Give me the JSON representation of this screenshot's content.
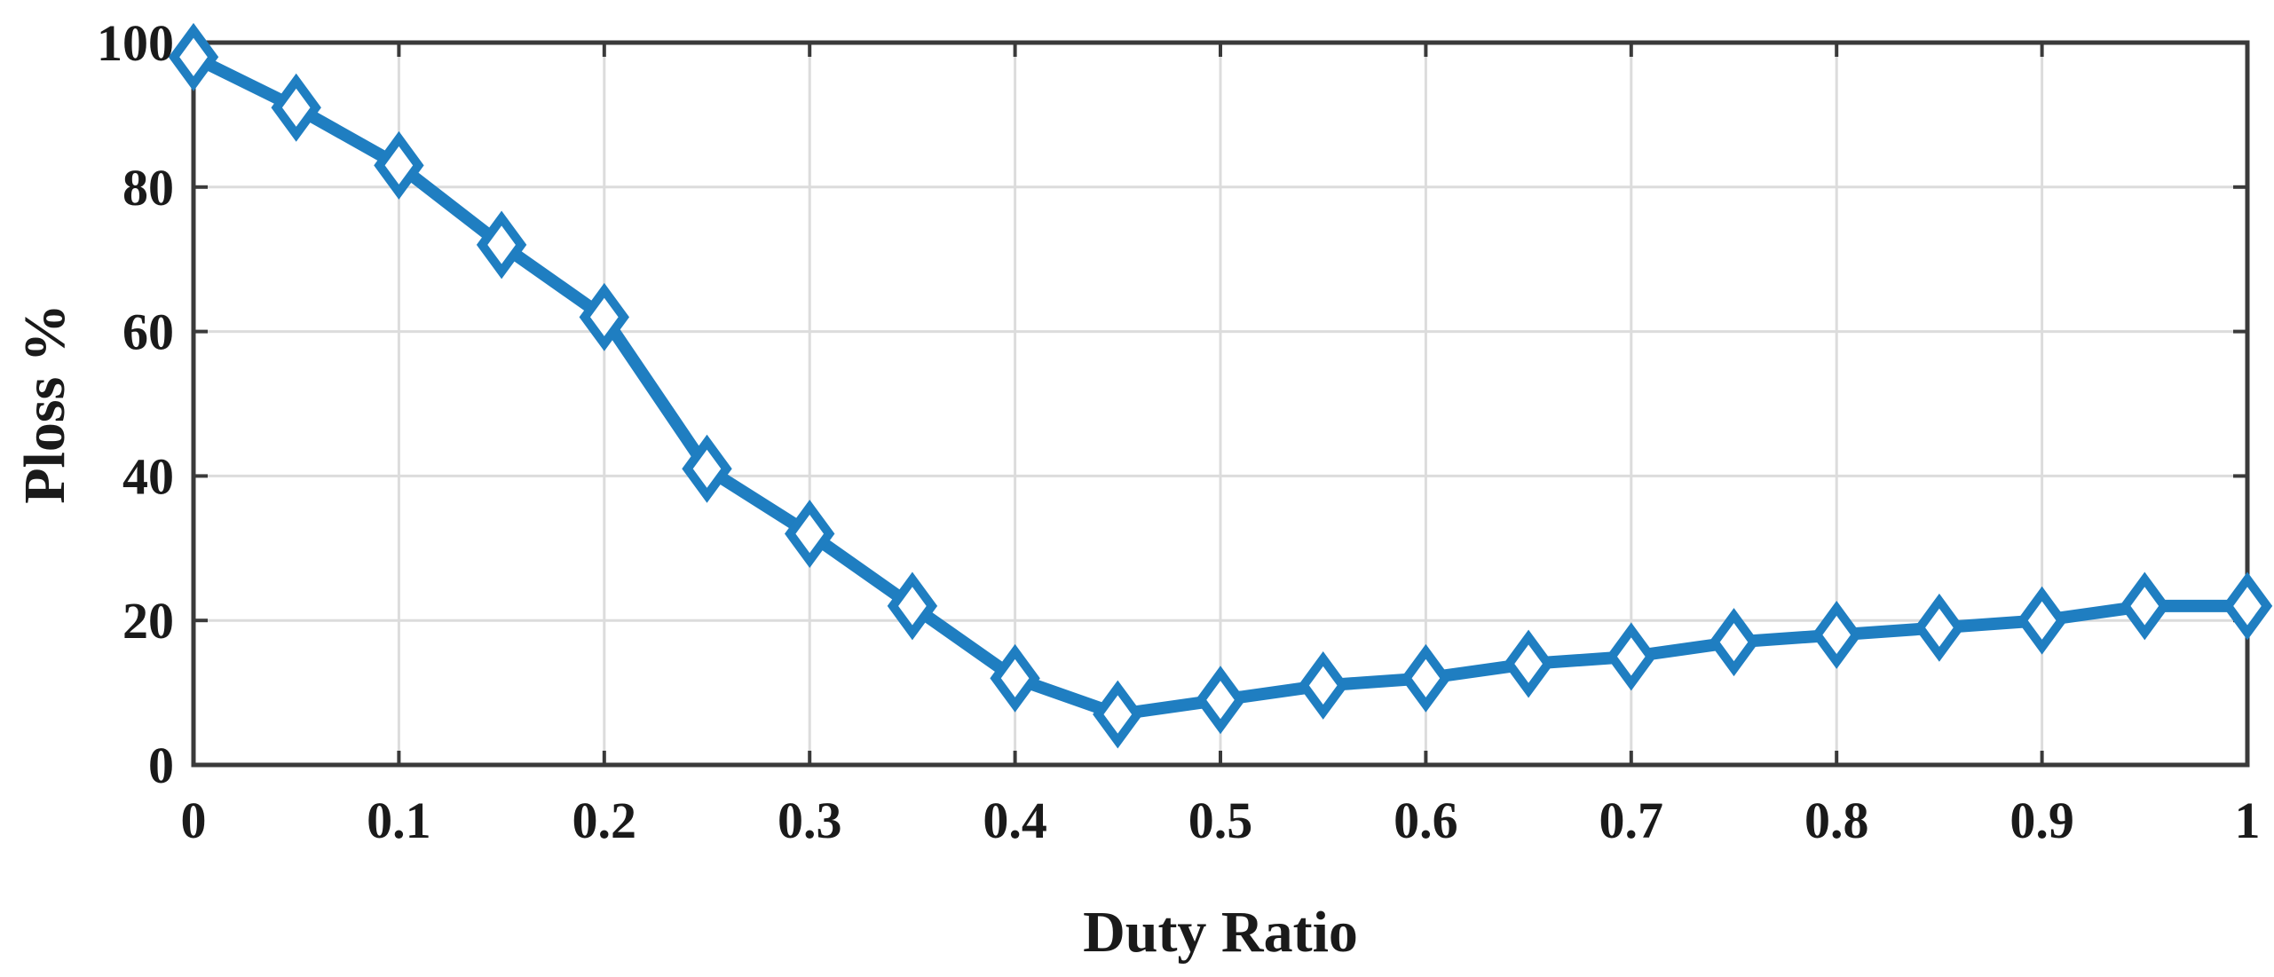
{
  "chart_data": {
    "type": "line",
    "xlabel": "Duty Ratio",
    "ylabel": "Ploss %",
    "xlim": [
      0,
      1
    ],
    "ylim": [
      0,
      100
    ],
    "xticks": [
      0,
      0.1,
      0.2,
      0.3,
      0.4,
      0.5,
      0.6,
      0.7,
      0.8,
      0.9,
      1
    ],
    "xtick_labels": [
      "0",
      "0.1",
      "0.2",
      "0.3",
      "0.4",
      "0.5",
      "0.6",
      "0.7",
      "0.8",
      "0.9",
      "1"
    ],
    "yticks": [
      0,
      20,
      40,
      60,
      80,
      100
    ],
    "ytick_labels": [
      "0",
      "20",
      "40",
      "60",
      "80",
      "100"
    ],
    "grid": true,
    "legend": "none",
    "series": [
      {
        "color": "#1f7ec1",
        "marker": "diamond",
        "x": [
          0,
          0.05,
          0.1,
          0.15,
          0.2,
          0.25,
          0.3,
          0.35,
          0.4,
          0.45,
          0.5,
          0.55,
          0.6,
          0.65,
          0.7,
          0.75,
          0.8,
          0.85,
          0.9,
          0.95,
          1
        ],
        "values": [
          98,
          91,
          83,
          72,
          62,
          41,
          32,
          22,
          12,
          7,
          9,
          11,
          12,
          14,
          15,
          17,
          18,
          19,
          20,
          22,
          22
        ]
      }
    ]
  }
}
